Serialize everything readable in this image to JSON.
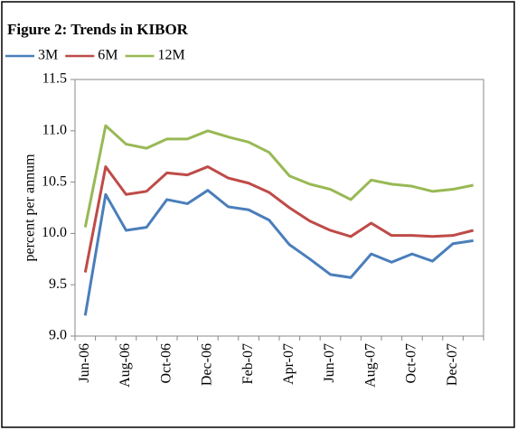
{
  "chart_data": {
    "type": "line",
    "title": "Figure 2: Trends in KIBOR",
    "y_label": "percent per annum",
    "categories": [
      "Jun-06",
      null,
      "Aug-06",
      null,
      "Oct-06",
      null,
      "Dec-06",
      null,
      "Feb-07",
      null,
      "Apr-07",
      null,
      "Jun-07",
      null,
      "Aug-07",
      null,
      "Oct-07",
      null,
      "Dec-07",
      null
    ],
    "series": [
      {
        "name": "3M",
        "color": "#4a7ebb",
        "values": [
          9.2,
          10.38,
          10.03,
          10.06,
          10.33,
          10.29,
          10.42,
          10.26,
          10.23,
          10.13,
          9.89,
          9.75,
          9.6,
          9.57,
          9.8,
          9.72,
          9.8,
          9.73,
          9.9,
          9.93
        ]
      },
      {
        "name": "6M",
        "color": "#be4b48",
        "values": [
          9.62,
          10.65,
          10.38,
          10.41,
          10.59,
          10.57,
          10.65,
          10.54,
          10.49,
          10.4,
          10.25,
          10.12,
          10.03,
          9.97,
          10.1,
          9.98,
          9.98,
          9.97,
          9.98,
          10.03
        ]
      },
      {
        "name": "12M",
        "color": "#98b954",
        "values": [
          10.06,
          11.05,
          10.87,
          10.83,
          10.92,
          10.92,
          11.0,
          10.94,
          10.89,
          10.79,
          10.56,
          10.48,
          10.43,
          10.33,
          10.52,
          10.48,
          10.46,
          10.41,
          10.43,
          10.47
        ]
      }
    ],
    "ylim": [
      9.0,
      11.5
    ],
    "yticks": [
      {
        "value": 9.0,
        "label": "9.0"
      },
      9.5,
      {
        "value": 10.0,
        "label": "10.0"
      },
      10.5,
      {
        "value": 11.0,
        "label": "11.0"
      },
      11.5
    ],
    "grid": false,
    "legend": "top-left"
  }
}
